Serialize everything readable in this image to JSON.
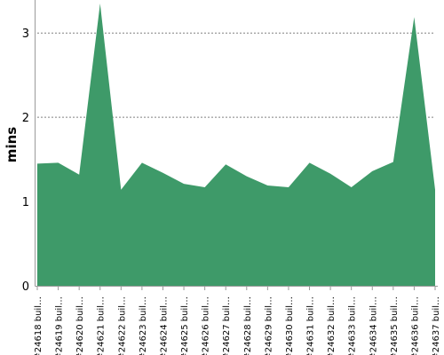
{
  "chart_data": {
    "type": "area",
    "title": "",
    "xlabel": "",
    "ylabel": "mins",
    "ylim": [
      0,
      3.35
    ],
    "yticks": [
      0,
      1,
      2,
      3
    ],
    "grid": true,
    "legend": "none",
    "categories": [
      "#24618 buil…",
      "#24619 buil…",
      "#24620 buil…",
      "#24621 buil…",
      "#24622 buil…",
      "#24623 buil…",
      "#24624 buil…",
      "#24625 buil…",
      "#24626 buil…",
      "#24627 buil…",
      "#24628 buil…",
      "#24629 buil…",
      "#24630 buil…",
      "#24631 buil…",
      "#24632 buil…",
      "#24633 buil…",
      "#24634 buil…",
      "#24635 buil…",
      "#24636 buil…",
      "#24637 buil…"
    ],
    "values": [
      1.45,
      1.46,
      1.32,
      3.35,
      1.14,
      1.46,
      1.34,
      1.21,
      1.17,
      1.44,
      1.3,
      1.19,
      1.17,
      1.46,
      1.33,
      1.17,
      1.36,
      1.47,
      3.19,
      1.14
    ],
    "colors": {
      "area": "#3e9a69",
      "grid": "#808080",
      "axis": "#9a9a9a"
    }
  }
}
